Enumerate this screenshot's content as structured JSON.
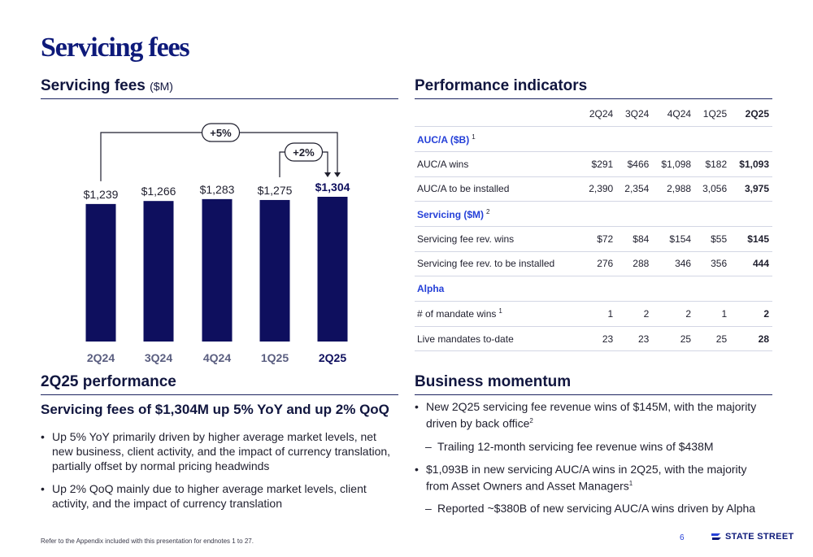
{
  "page": {
    "title": "Servicing fees",
    "footnote": "Refer to the Appendix included with this presentation for endnotes 1 to 27.",
    "page_number": "6",
    "logo_text": "STATE STREET"
  },
  "colors": {
    "navy": "#0e0f5e",
    "title_blue": "#0e1a7a",
    "accent_blue": "#2540d8"
  },
  "chart_section": {
    "title": "Servicing fees",
    "unit": "($M)"
  },
  "chart_data": {
    "type": "bar",
    "categories": [
      "2Q24",
      "3Q24",
      "4Q24",
      "1Q25",
      "2Q25"
    ],
    "values": [
      1239,
      1266,
      1283,
      1275,
      1304
    ],
    "value_labels": [
      "$1,239",
      "$1,266",
      "$1,283",
      "$1,275",
      "$1,304"
    ],
    "highlight_index": 4,
    "title": "",
    "xlabel": "",
    "ylabel": "",
    "ylim": [
      0,
      1304
    ],
    "grid": false,
    "annotations": [
      {
        "label": "+5%",
        "from": "2Q24",
        "to": "2Q25"
      },
      {
        "label": "+2%",
        "from": "1Q25",
        "to": "2Q25"
      }
    ]
  },
  "performance": {
    "title": "Performance indicators",
    "columns": [
      "2Q24",
      "3Q24",
      "4Q24",
      "1Q25",
      "2Q25"
    ],
    "rows": [
      {
        "type": "group",
        "label": "AUC/A ($B)",
        "note": "1"
      },
      {
        "type": "data",
        "label": "AUC/A wins",
        "values": [
          "$291",
          "$466",
          "$1,098",
          "$182",
          "$1,093"
        ]
      },
      {
        "type": "data",
        "label": "AUC/A to be installed",
        "values": [
          "2,390",
          "2,354",
          "2,988",
          "3,056",
          "3,975"
        ]
      },
      {
        "type": "group",
        "label": "Servicing ($M)",
        "note": "2"
      },
      {
        "type": "data",
        "label": "Servicing fee rev. wins",
        "values": [
          "$72",
          "$84",
          "$154",
          "$55",
          "$145"
        ]
      },
      {
        "type": "data",
        "label": "Servicing fee rev. to be installed",
        "values": [
          "276",
          "288",
          "346",
          "356",
          "444"
        ]
      },
      {
        "type": "group",
        "label": "Alpha",
        "note": ""
      },
      {
        "type": "data",
        "label": "# of mandate wins",
        "note": "1",
        "values": [
          "1",
          "2",
          "2",
          "1",
          "2"
        ]
      },
      {
        "type": "data",
        "label": "Live mandates to-date",
        "values": [
          "23",
          "23",
          "25",
          "25",
          "28"
        ]
      }
    ]
  },
  "q_performance": {
    "title": "2Q25 performance",
    "headline": "Servicing fees of $1,304M up 5% YoY and up 2% QoQ",
    "bullets": [
      "Up 5% YoY primarily driven by higher average market levels, net new business, client activity, and the impact of currency translation, partially offset by normal pricing headwinds",
      "Up 2% QoQ mainly due to higher average market levels, client activity, and the impact of currency translation"
    ]
  },
  "momentum": {
    "title": "Business momentum",
    "b1": "New 2Q25 servicing fee revenue wins of $145M, with the majority driven by back office",
    "b1_note": "2",
    "b1_sub": "Trailing 12-month servicing fee revenue wins of $438M",
    "b2": "$1,093B in new servicing AUC/A wins in 2Q25, with the majority from Asset Owners and Asset Managers",
    "b2_note": "1",
    "b2_sub": "Reported ~$380B of new servicing AUC/A wins driven by Alpha"
  }
}
